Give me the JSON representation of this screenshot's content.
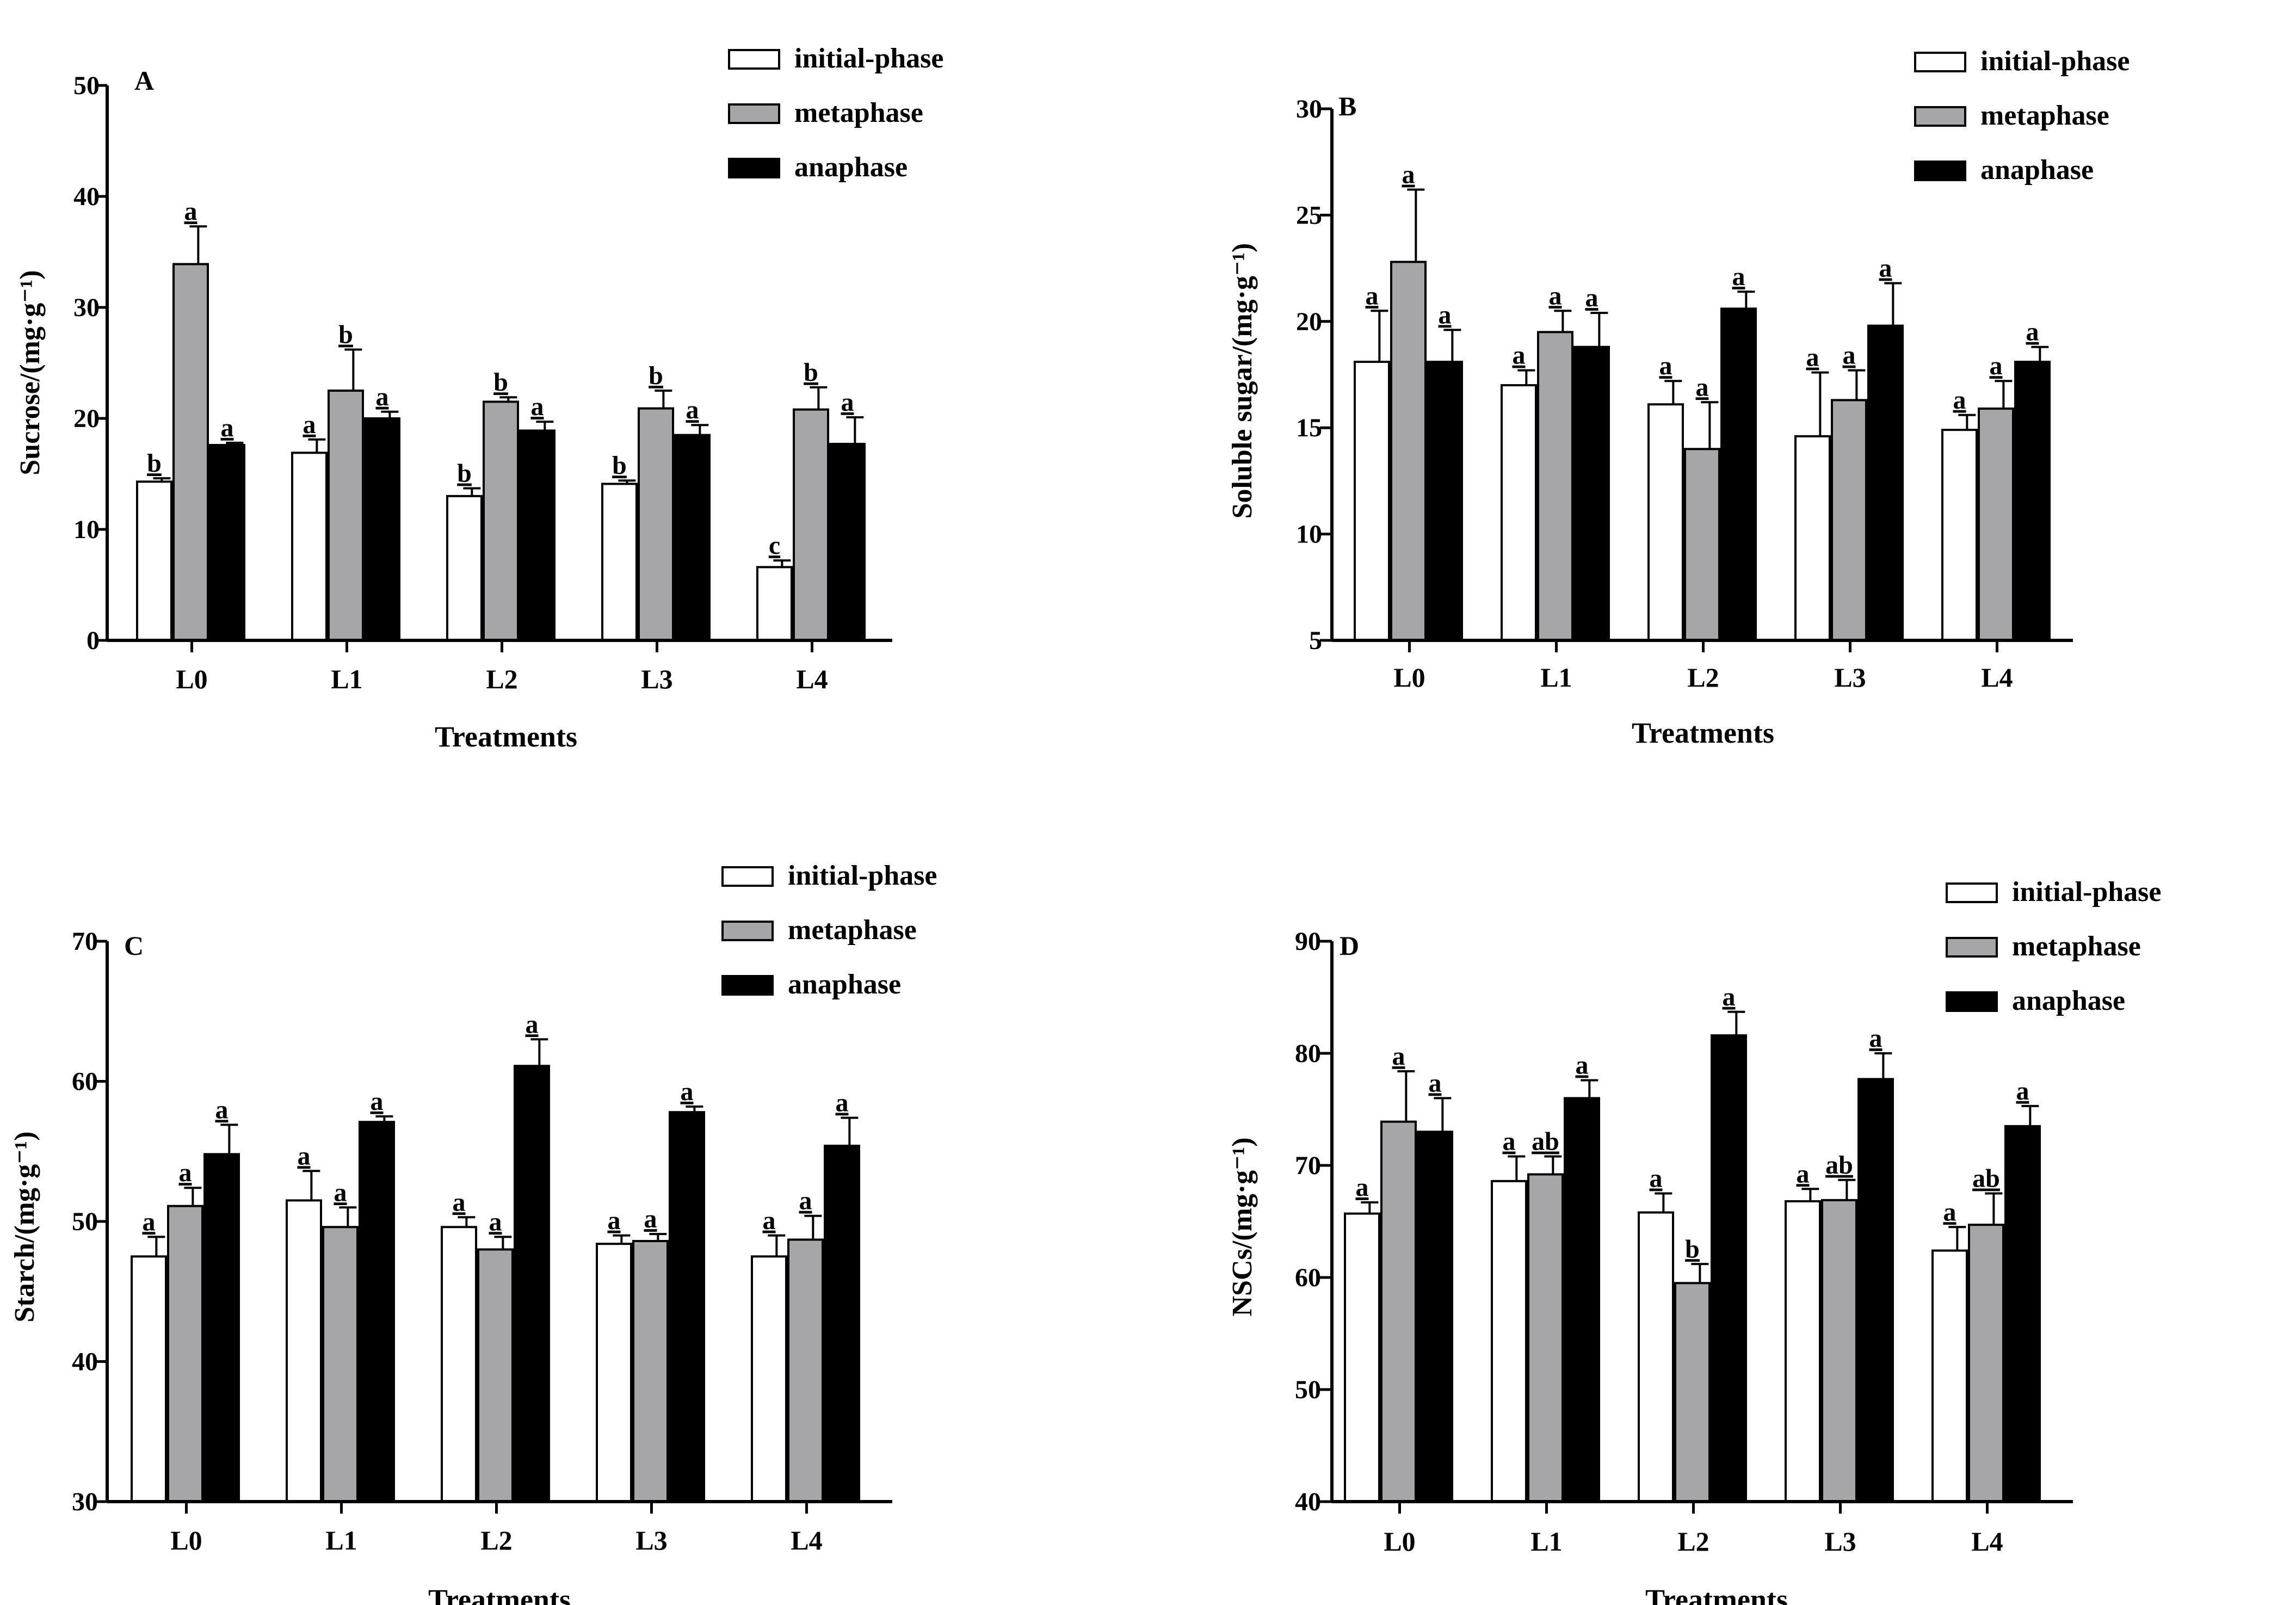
{
  "legend_labels": [
    "initial-phase",
    "metaphase",
    "anaphase"
  ],
  "series_colors": [
    "#ffffff",
    "#a6a6a8",
    "#000000"
  ],
  "chart_data": [
    {
      "type": "bar",
      "panel": "A",
      "title": "",
      "xlabel": "Treatments",
      "ylabel": "Sucrose/(mg·g⁻¹)",
      "ylim": [
        0,
        50
      ],
      "yticks": [
        0,
        10,
        20,
        30,
        40,
        50
      ],
      "categories": [
        "L0",
        "L1",
        "L2",
        "L3",
        "L4"
      ],
      "legend": "top-right",
      "series": [
        {
          "name": "initial-phase",
          "values": [
            14.3,
            16.9,
            13.0,
            14.1,
            6.6
          ],
          "errors": [
            0.3,
            1.2,
            0.7,
            0.3,
            0.6
          ],
          "letters": [
            "b",
            "a",
            "b",
            "b",
            "c"
          ]
        },
        {
          "name": "metaphase",
          "values": [
            33.9,
            22.5,
            21.5,
            20.9,
            20.8
          ],
          "errors": [
            3.4,
            3.7,
            0.4,
            1.6,
            2.0
          ],
          "letters": [
            "a",
            "b",
            "b",
            "b",
            "b"
          ]
        },
        {
          "name": "anaphase",
          "values": [
            17.6,
            20.0,
            18.9,
            18.5,
            17.7
          ],
          "errors": [
            0.2,
            0.6,
            0.8,
            0.9,
            2.4
          ],
          "letters": [
            "a",
            "a",
            "a",
            "a",
            "a"
          ]
        }
      ]
    },
    {
      "type": "bar",
      "panel": "B",
      "title": "",
      "xlabel": "Treatments",
      "ylabel": "Soluble sugar/(mg·g⁻¹)",
      "ylim": [
        5,
        30
      ],
      "yticks": [
        5,
        10,
        15,
        20,
        25,
        30
      ],
      "categories": [
        "L0",
        "L1",
        "L2",
        "L3",
        "L4"
      ],
      "legend": "top-right",
      "series": [
        {
          "name": "initial-phase",
          "values": [
            18.1,
            17.0,
            16.1,
            14.6,
            14.9
          ],
          "errors": [
            2.4,
            0.7,
            1.1,
            3.0,
            0.7
          ],
          "letters": [
            "a",
            "a",
            "a",
            "a",
            "a"
          ]
        },
        {
          "name": "metaphase",
          "values": [
            22.8,
            19.5,
            14.0,
            16.3,
            15.9
          ],
          "errors": [
            3.4,
            1.0,
            2.2,
            1.4,
            1.3
          ],
          "letters": [
            "a",
            "a",
            "a",
            "a",
            "a"
          ]
        },
        {
          "name": "anaphase",
          "values": [
            18.1,
            18.8,
            20.6,
            19.8,
            18.1
          ],
          "errors": [
            1.5,
            1.6,
            0.8,
            2.0,
            0.7
          ],
          "letters": [
            "a",
            "a",
            "a",
            "a",
            "a"
          ]
        }
      ]
    },
    {
      "type": "bar",
      "panel": "C",
      "title": "",
      "xlabel": "Treatments",
      "ylabel": "Starch/(mg·g⁻¹)",
      "ylim": [
        30,
        70
      ],
      "yticks": [
        30,
        40,
        50,
        60,
        70
      ],
      "categories": [
        "L0",
        "L1",
        "L2",
        "L3",
        "L4"
      ],
      "legend": "top-right",
      "series": [
        {
          "name": "initial-phase",
          "values": [
            47.5,
            51.5,
            49.6,
            48.4,
            47.5
          ],
          "errors": [
            1.4,
            2.1,
            0.7,
            0.6,
            1.5
          ],
          "letters": [
            "a",
            "a",
            "a",
            "a",
            "a"
          ]
        },
        {
          "name": "metaphase",
          "values": [
            51.1,
            49.6,
            48.0,
            48.6,
            48.7
          ],
          "errors": [
            1.3,
            1.4,
            0.9,
            0.5,
            1.7
          ],
          "letters": [
            "a",
            "a",
            "a",
            "a",
            "a"
          ]
        },
        {
          "name": "anaphase",
          "values": [
            54.8,
            57.1,
            61.1,
            57.8,
            55.4
          ],
          "errors": [
            2.1,
            0.4,
            1.9,
            0.4,
            2.0
          ],
          "letters": [
            "a",
            "a",
            "a",
            "a",
            "a"
          ]
        }
      ]
    },
    {
      "type": "bar",
      "panel": "D",
      "title": "",
      "xlabel": "Treatments",
      "ylabel": "NSCs/(mg·g⁻¹)",
      "ylim": [
        40,
        90
      ],
      "yticks": [
        40,
        50,
        60,
        70,
        80,
        90
      ],
      "categories": [
        "L0",
        "L1",
        "L2",
        "L3",
        "L4"
      ],
      "legend": "top-right",
      "series": [
        {
          "name": "initial-phase",
          "values": [
            65.7,
            68.6,
            65.8,
            66.8,
            62.4
          ],
          "errors": [
            1.0,
            2.2,
            1.7,
            1.1,
            2.1
          ],
          "letters": [
            "a",
            "a",
            "a",
            "a",
            "a"
          ]
        },
        {
          "name": "metaphase",
          "values": [
            73.9,
            69.2,
            59.5,
            66.9,
            64.7
          ],
          "errors": [
            4.5,
            1.6,
            1.7,
            1.8,
            2.8
          ],
          "letters": [
            "a",
            "ab",
            "b",
            "ab",
            "ab"
          ]
        },
        {
          "name": "anaphase",
          "values": [
            73.0,
            76.0,
            81.6,
            77.7,
            73.5
          ],
          "errors": [
            3.0,
            1.6,
            2.1,
            2.3,
            1.8
          ],
          "letters": [
            "a",
            "a",
            "a",
            "a",
            "a"
          ]
        }
      ]
    }
  ]
}
